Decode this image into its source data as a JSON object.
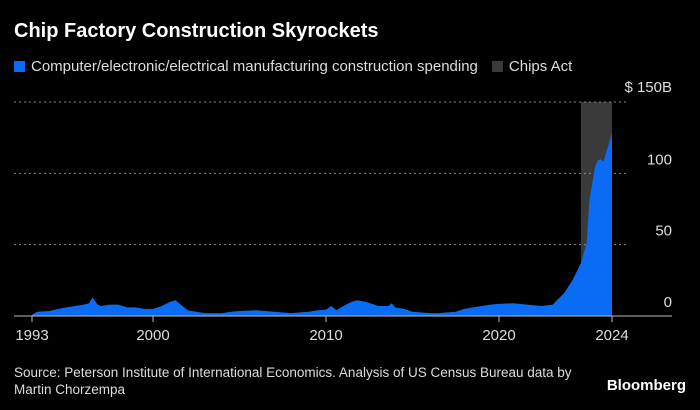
{
  "chart_data": {
    "type": "area",
    "title": "Chip Factory Construction Skyrockets",
    "series": [
      {
        "name": "Computer/electronic/electrical manufacturing construction spending",
        "color": "#0a6cf5",
        "points": [
          [
            1993,
            1
          ],
          [
            1993.3,
            3
          ],
          [
            1994,
            3.5
          ],
          [
            1994.5,
            5
          ],
          [
            1995,
            6
          ],
          [
            1995.5,
            7
          ],
          [
            1996,
            8
          ],
          [
            1996.3,
            9
          ],
          [
            1996.5,
            13
          ],
          [
            1996.8,
            8
          ],
          [
            1997,
            7
          ],
          [
            1997.5,
            8
          ],
          [
            1998,
            8
          ],
          [
            1998.5,
            6
          ],
          [
            1999,
            6
          ],
          [
            1999.5,
            5
          ],
          [
            2000,
            5
          ],
          [
            2000.5,
            7
          ],
          [
            2001,
            10
          ],
          [
            2001.3,
            11
          ],
          [
            2001.7,
            7
          ],
          [
            2002,
            4
          ],
          [
            2002.5,
            3
          ],
          [
            2003,
            2
          ],
          [
            2004,
            2
          ],
          [
            2004.5,
            3
          ],
          [
            2005,
            3.5
          ],
          [
            2006,
            4
          ],
          [
            2006.5,
            3.5
          ],
          [
            2007,
            3
          ],
          [
            2008,
            2
          ],
          [
            2008.5,
            2.5
          ],
          [
            2009,
            3
          ],
          [
            2009.5,
            4
          ],
          [
            2010,
            4.5
          ],
          [
            2010.3,
            7
          ],
          [
            2010.6,
            4
          ],
          [
            2011,
            7
          ],
          [
            2011.5,
            10
          ],
          [
            2011.8,
            11
          ],
          [
            2012.3,
            10
          ],
          [
            2012.8,
            8
          ],
          [
            2013,
            7
          ],
          [
            2013.6,
            7
          ],
          [
            2013.8,
            9
          ],
          [
            2014,
            6
          ],
          [
            2014.5,
            5
          ],
          [
            2015,
            3
          ],
          [
            2016,
            2
          ],
          [
            2016.5,
            2
          ],
          [
            2017,
            2.5
          ],
          [
            2017.5,
            3
          ],
          [
            2018,
            5
          ],
          [
            2018.5,
            6
          ],
          [
            2019,
            7
          ],
          [
            2019.5,
            8
          ],
          [
            2020,
            8.5
          ],
          [
            2020.5,
            9
          ],
          [
            2021,
            8
          ],
          [
            2021.5,
            7
          ],
          [
            2021.9,
            8
          ],
          [
            2022.1,
            12
          ],
          [
            2022.3,
            16
          ],
          [
            2022.6,
            25
          ],
          [
            2022.9,
            37
          ],
          [
            2023.1,
            51
          ],
          [
            2023.2,
            81
          ],
          [
            2023.4,
            105
          ],
          [
            2023.5,
            109
          ],
          [
            2023.6,
            110
          ],
          [
            2023.7,
            108
          ],
          [
            2023.8,
            115
          ],
          [
            2023.9,
            121
          ],
          [
            2024,
            129
          ]
        ]
      }
    ],
    "annotation": {
      "name": "Chips Act",
      "start": 2022.9,
      "end": 2024,
      "color": "#3a3a3a"
    },
    "x_ticks": [
      1993,
      2000,
      2010,
      2020,
      2024
    ],
    "x_tick_labels": [
      "1993",
      "2000",
      "2010",
      "2020",
      "2024"
    ],
    "y_ticks": [
      0,
      50,
      100,
      150
    ],
    "y_tick_labels": [
      "0",
      "50",
      "100",
      "$ 150B"
    ],
    "ylim": [
      0,
      150
    ],
    "grid": true,
    "legend": "top-left"
  },
  "source": "Source: Peterson Institute of International Economics. Analysis of US Census Bureau data by Martin Chorzempa",
  "brand": "Bloomberg"
}
